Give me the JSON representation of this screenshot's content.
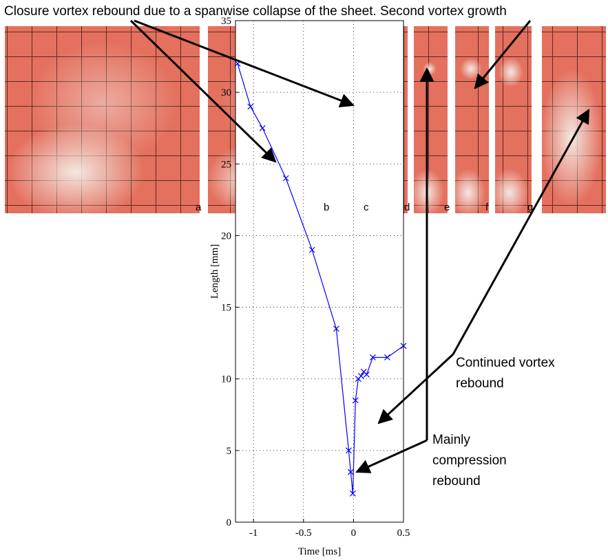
{
  "chart_data": {
    "type": "line",
    "x_label": "Time  [ms]",
    "y_label": "Length  [mm]",
    "xlim": [
      -1.18,
      0.5
    ],
    "ylim": [
      0,
      35
    ],
    "xticks": [
      -1,
      -0.5,
      0,
      0.5
    ],
    "yticks": [
      0,
      5,
      10,
      15,
      20,
      25,
      30,
      35
    ],
    "grid": true,
    "series": [
      {
        "color": "#0000ff",
        "x": [
          -1.159,
          -1.03,
          -0.91,
          -0.676,
          -0.414,
          -0.172,
          -0.048,
          -0.028,
          -0.007,
          0.02,
          0.048,
          0.076,
          0.103,
          0.131,
          0.193,
          0.338,
          0.5
        ],
        "values": [
          32,
          29,
          27.5,
          24,
          19,
          13.5,
          5,
          3.5,
          2,
          8.5,
          10,
          10.2,
          10.5,
          10.3,
          11.5,
          11.5,
          12.3
        ]
      }
    ],
    "annotations": {
      "top": "Closure vortex rebound due to a spanwise collapse of the sheet. Second vortex growth",
      "continued": [
        "Continued vortex",
        "rebound"
      ],
      "compression": [
        "Mainly",
        "compression",
        "rebound"
      ]
    },
    "panel_labels": [
      "a",
      "b",
      "c",
      "d",
      "e",
      "f",
      "g"
    ]
  }
}
